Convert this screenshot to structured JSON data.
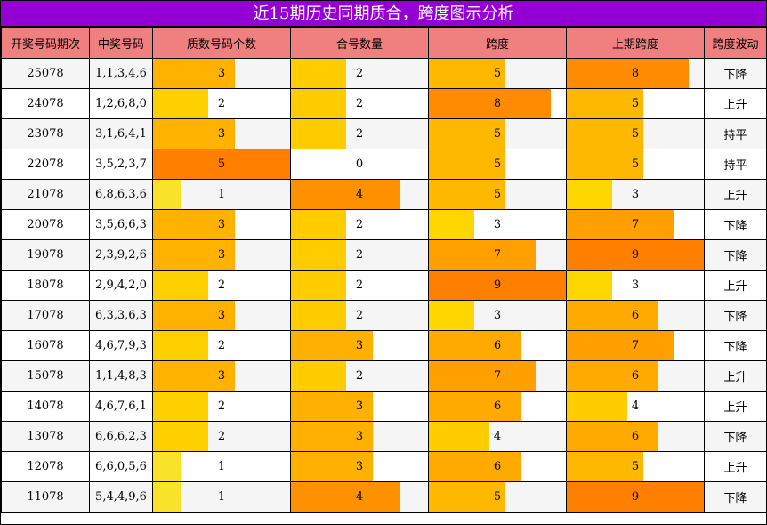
{
  "title": "近15期历史同期质合，跨度图示分析",
  "headers": [
    "开奖号码期次",
    "中奖号码",
    "质数号码个数",
    "合号数量",
    "跨度",
    "上期跨度",
    "跨度波动"
  ],
  "chart_data": {
    "type": "table",
    "columns": [
      "开奖号码期次",
      "中奖号码",
      "质数号码个数",
      "合号数量",
      "跨度",
      "上期跨度",
      "跨度波动"
    ],
    "rows": [
      {
        "period": "25078",
        "numbers": "1,1,3,4,6",
        "primes": 3,
        "composites": 2,
        "span": 5,
        "prev_span": 8,
        "trend": "下降"
      },
      {
        "period": "24078",
        "numbers": "1,2,6,8,0",
        "primes": 2,
        "composites": 2,
        "span": 8,
        "prev_span": 5,
        "trend": "上升"
      },
      {
        "period": "23078",
        "numbers": "3,1,6,4,1",
        "primes": 3,
        "composites": 2,
        "span": 5,
        "prev_span": 5,
        "trend": "持平"
      },
      {
        "period": "22078",
        "numbers": "3,5,2,3,7",
        "primes": 5,
        "composites": 0,
        "span": 5,
        "prev_span": 5,
        "trend": "持平"
      },
      {
        "period": "21078",
        "numbers": "6,8,6,3,6",
        "primes": 1,
        "composites": 4,
        "span": 5,
        "prev_span": 3,
        "trend": "上升"
      },
      {
        "period": "20078",
        "numbers": "3,5,6,6,3",
        "primes": 3,
        "composites": 2,
        "span": 3,
        "prev_span": 7,
        "trend": "下降"
      },
      {
        "period": "19078",
        "numbers": "2,3,9,2,6",
        "primes": 3,
        "composites": 2,
        "span": 7,
        "prev_span": 9,
        "trend": "下降"
      },
      {
        "period": "18078",
        "numbers": "2,9,4,2,0",
        "primes": 2,
        "composites": 2,
        "span": 9,
        "prev_span": 3,
        "trend": "上升"
      },
      {
        "period": "17078",
        "numbers": "6,3,3,6,3",
        "primes": 3,
        "composites": 2,
        "span": 3,
        "prev_span": 6,
        "trend": "下降"
      },
      {
        "period": "16078",
        "numbers": "4,6,7,9,3",
        "primes": 2,
        "composites": 3,
        "span": 6,
        "prev_span": 7,
        "trend": "下降"
      },
      {
        "period": "15078",
        "numbers": "1,1,4,8,3",
        "primes": 3,
        "composites": 2,
        "span": 7,
        "prev_span": 6,
        "trend": "上升"
      },
      {
        "period": "14078",
        "numbers": "4,6,7,6,1",
        "primes": 2,
        "composites": 3,
        "span": 6,
        "prev_span": 4,
        "trend": "上升"
      },
      {
        "period": "13078",
        "numbers": "6,6,6,2,3",
        "primes": 2,
        "composites": 3,
        "span": 4,
        "prev_span": 6,
        "trend": "下降"
      },
      {
        "period": "12078",
        "numbers": "6,6,0,5,6",
        "primes": 1,
        "composites": 3,
        "span": 6,
        "prev_span": 5,
        "trend": "上升"
      },
      {
        "period": "11078",
        "numbers": "5,4,4,9,6",
        "primes": 1,
        "composites": 4,
        "span": 5,
        "prev_span": 9,
        "trend": "下降"
      }
    ],
    "bar_scale": {
      "primes": 5,
      "composites": 5,
      "span": 9,
      "prev_span": 9
    }
  }
}
